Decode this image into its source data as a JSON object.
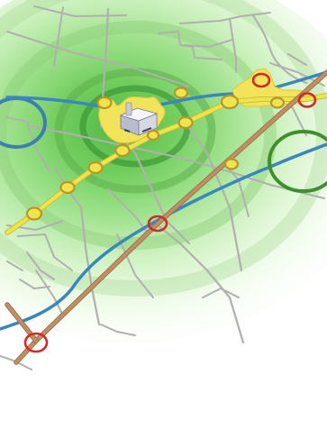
{
  "map": {
    "type": "urban-transit-catchment",
    "colors": {
      "background": "#ffffff",
      "catchment_green": "#63c84c",
      "street_gray": "#b0b0b0",
      "road_river_blue": "#3c86c0",
      "rail_brown": "#b7855c",
      "transit_line_yellow": "#f0e44c",
      "station_fill_yellow": "#f0e44c",
      "station_ring_olive": "#b8962c",
      "interchange_red": "#d12a26",
      "green_ring": "#3f8e2f",
      "blue_ring": "#3c7fb5",
      "urban_core_yellow": "#f2e45a"
    },
    "features": {
      "building": "3d-building-icon",
      "stations": "station-markers",
      "interchanges": "interchange-markers"
    },
    "counts": {
      "olive_stations": 11,
      "red_interchanges": 4
    }
  }
}
